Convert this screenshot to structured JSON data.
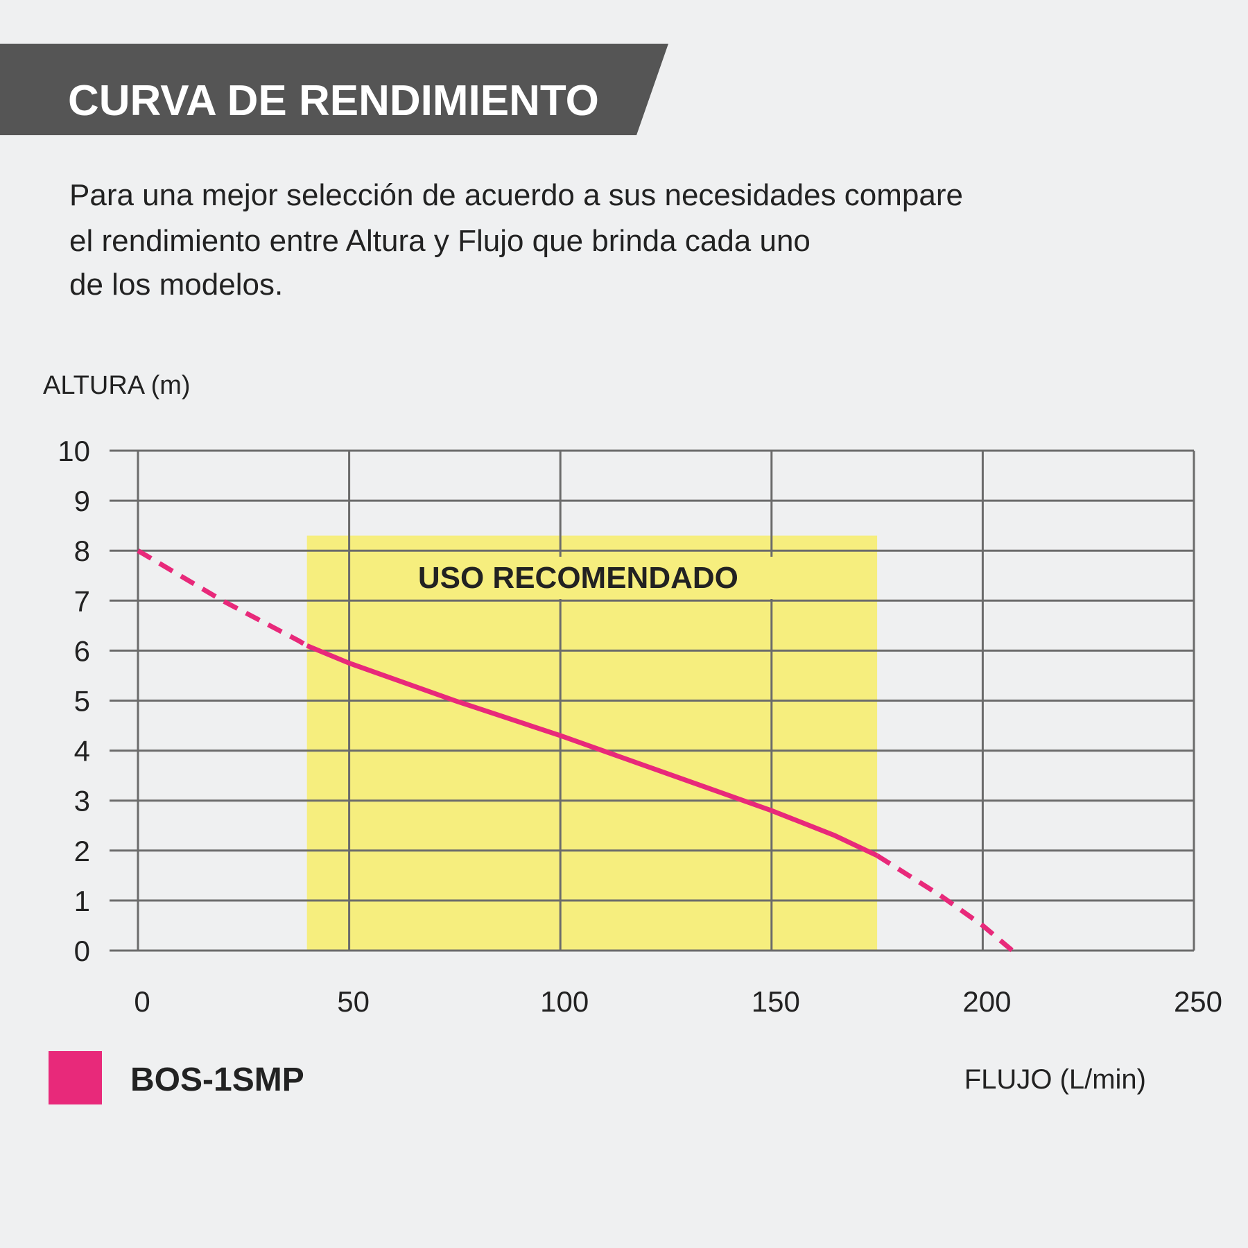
{
  "chart_data": {
    "type": "line",
    "title": "CURVA DE RENDIMIENTO",
    "description": [
      "Para una mejor selección de acuerdo a sus necesidades compare",
      "el rendimiento entre Altura y Flujo que brinda cada uno",
      "de los modelos."
    ],
    "y_label": "ALTURA (m)",
    "x_label": "FLUJO (L/min)",
    "x": [
      0,
      20,
      38,
      40,
      50,
      60,
      75,
      100,
      125,
      150,
      165,
      175,
      190,
      200,
      207
    ],
    "series": [
      {
        "name": "BOS-1SMP",
        "color": "#e8297a",
        "values": [
          8,
          7,
          6.2,
          6.1,
          5.75,
          5.45,
          5.0,
          4.3,
          3.55,
          2.8,
          2.3,
          1.9,
          1.1,
          0.5,
          0
        ]
      }
    ],
    "highlight": {
      "label": "USO RECOMENDADO",
      "x": [
        40,
        175
      ],
      "y": [
        0,
        8.3
      ],
      "color": "#f6ee7e"
    },
    "xlim": [
      0,
      250
    ],
    "xticks": [
      0,
      50,
      100,
      150,
      200,
      250
    ],
    "ylim": [
      0,
      10
    ],
    "yticks": [
      0,
      1,
      2,
      3,
      4,
      5,
      6,
      7,
      8,
      9,
      10
    ],
    "grid": true
  }
}
